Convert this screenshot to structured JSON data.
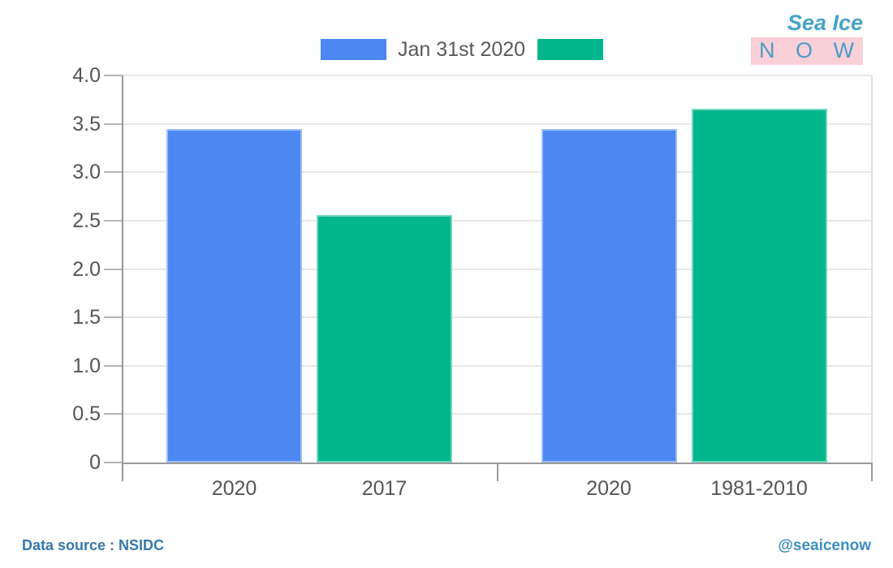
{
  "logo": {
    "line1": "Sea Ice",
    "line2": "N O W"
  },
  "legend": {
    "entries": [
      {
        "label": "Jan 31st 2020",
        "color": "#4d87f2"
      },
      {
        "label": "",
        "color": "#00b68a"
      }
    ]
  },
  "footer": {
    "source": "Data source : NSIDC",
    "handle": "@seaicenow"
  },
  "colors": {
    "bar_blue": "#4d87f2",
    "bar_green": "#00b68a",
    "gridline": "#e7e7e7",
    "axis": "#9a9a9a",
    "tick_text": "#555555",
    "legend_text": "#5a5a5a",
    "logo_blue": "#45a3c9",
    "logo_pink": "#f9d0d8",
    "footer_blue": "#3579ad"
  },
  "chart_data": {
    "type": "bar",
    "ylim": [
      0,
      4.0
    ],
    "ytick_step": 0.5,
    "yticks": [
      "0",
      "0.5",
      "1.0",
      "1.5",
      "2.0",
      "2.5",
      "3.0",
      "3.5",
      "4.0"
    ],
    "grid": true,
    "legend_position": "top-center",
    "legend_entries": [
      {
        "label": "Jan 31st 2020",
        "color": "#4d87f2"
      },
      {
        "label": "",
        "color": "#00b68a"
      }
    ],
    "panels": [
      {
        "bars": [
          {
            "category": "2020",
            "value": 3.45,
            "color": "#4d87f2"
          },
          {
            "category": "2017",
            "value": 2.56,
            "color": "#00b68a"
          }
        ]
      },
      {
        "bars": [
          {
            "category": "2020",
            "value": 3.45,
            "color": "#4d87f2"
          },
          {
            "category": "1981-2010",
            "value": 3.66,
            "color": "#00b68a"
          }
        ]
      }
    ]
  }
}
